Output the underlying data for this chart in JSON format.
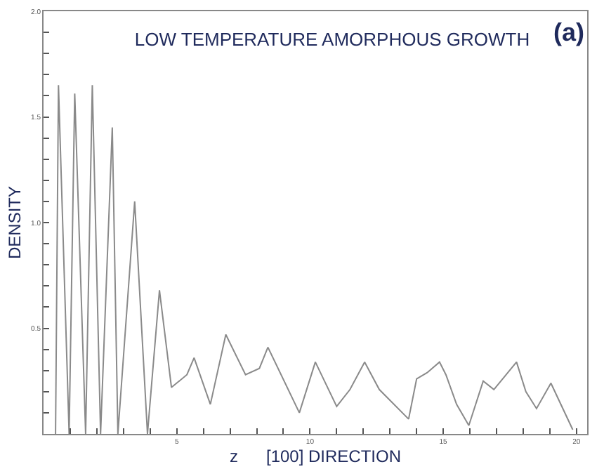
{
  "chart_data": {
    "type": "line",
    "title": "LOW TEMPERATURE AMORPHOUS GROWTH",
    "xlabel": "z      [100] DIRECTION",
    "ylabel": "DENSITY",
    "annotations": [
      "(a)"
    ],
    "x": [
      0.45,
      0.56,
      0.96,
      1.17,
      1.58,
      1.83,
      2.14,
      2.58,
      2.79,
      3.42,
      3.9,
      4.35,
      4.8,
      5.38,
      5.65,
      6.26,
      6.84,
      7.58,
      8.1,
      8.42,
      9.6,
      10.2,
      11.0,
      11.5,
      12.05,
      12.6,
      13.7,
      14.0,
      14.4,
      14.86,
      15.1,
      15.5,
      15.96,
      16.5,
      16.9,
      17.75,
      18.1,
      18.5,
      19.04,
      19.86
    ],
    "series": [
      {
        "color": "#8a8a8a",
        "values": [
          0,
          1.65,
          0,
          1.61,
          0,
          1.65,
          0,
          1.45,
          0,
          1.1,
          0,
          0.68,
          0.22,
          0.28,
          0.36,
          0.14,
          0.47,
          0.28,
          0.31,
          0.41,
          0.1,
          0.34,
          0.13,
          0.21,
          0.34,
          0.21,
          0.07,
          0.26,
          0.29,
          0.34,
          0.28,
          0.14,
          0.04,
          0.25,
          0.21,
          0.34,
          0.2,
          0.12,
          0.24,
          0.02
        ]
      }
    ],
    "xlim": [
      0,
      20.4
    ],
    "ylim": [
      0,
      2.0
    ],
    "xticks": [
      {
        "value": 1,
        "label": null
      },
      {
        "value": 2,
        "label": null
      },
      {
        "value": 3,
        "label": null
      },
      {
        "value": 4,
        "label": null
      },
      5,
      {
        "value": 6,
        "label": null
      },
      {
        "value": 7,
        "label": null
      },
      {
        "value": 8,
        "label": null
      },
      {
        "value": 9,
        "label": null
      },
      10,
      {
        "value": 11,
        "label": null
      },
      {
        "value": 12,
        "label": null
      },
      {
        "value": 13,
        "label": null
      },
      {
        "value": 14,
        "label": null
      },
      15,
      {
        "value": 16,
        "label": null
      },
      {
        "value": 17,
        "label": null
      },
      {
        "value": 18,
        "label": null
      },
      {
        "value": 19,
        "label": null
      },
      20
    ],
    "yticks": [
      {
        "value": 0.1,
        "label": null
      },
      {
        "value": 0.2,
        "label": null
      },
      {
        "value": 0.3,
        "label": null
      },
      {
        "value": 0.4,
        "label": null
      },
      {
        "value": 0.5,
        "label": "0.5"
      },
      {
        "value": 0.6,
        "label": null
      },
      {
        "value": 0.7,
        "label": null
      },
      {
        "value": 0.8,
        "label": null
      },
      {
        "value": 0.9,
        "label": null
      },
      {
        "value": 1.0,
        "label": "1.0"
      },
      {
        "value": 1.1,
        "label": null
      },
      {
        "value": 1.2,
        "label": null
      },
      {
        "value": 1.3,
        "label": null
      },
      {
        "value": 1.4,
        "label": null
      },
      {
        "value": 1.5,
        "label": "1.5"
      },
      {
        "value": 1.6,
        "label": null
      },
      {
        "value": 1.7,
        "label": null
      },
      {
        "value": 1.8,
        "label": null
      },
      {
        "value": 1.9,
        "label": null
      },
      {
        "value": 2.0,
        "label": "2.0"
      }
    ],
    "legend": false,
    "marker": "none",
    "line_style": "solid"
  }
}
